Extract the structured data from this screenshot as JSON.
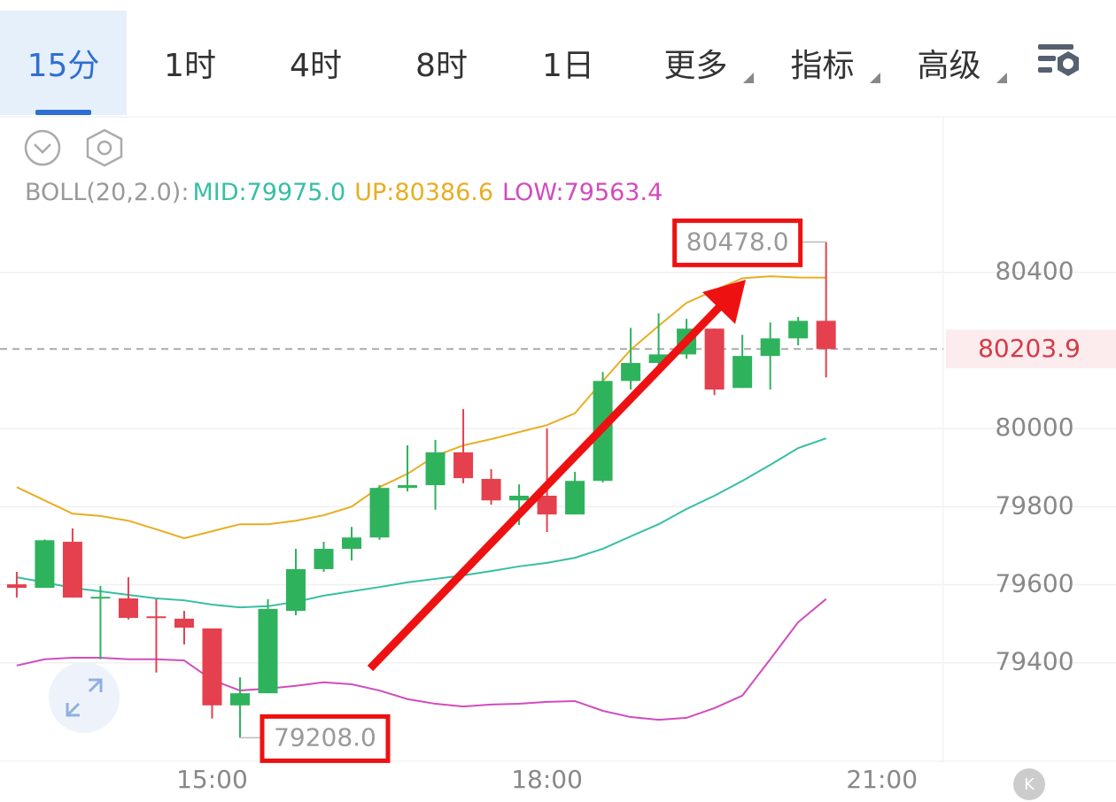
{
  "tabs": [
    "15分",
    "1时",
    "4时",
    "8时",
    "1日",
    "更多",
    "指标",
    "高级"
  ],
  "chart_data": {
    "type": "candlestick",
    "indicator_label": "BOLL(20,2.0):",
    "x": [
      13.25,
      13.5,
      13.75,
      14,
      14.25,
      14.5,
      14.75,
      15,
      15.25,
      15.5,
      15.75,
      16,
      16.25,
      16.5,
      16.75,
      17,
      17.25,
      17.5,
      17.75,
      18,
      18.25,
      18.5,
      18.75,
      19,
      19.25,
      19.5,
      19.75,
      20,
      20.25,
      20.5
    ],
    "open": [
      79601,
      79592,
      79710,
      79565,
      79565,
      79519,
      79513,
      79488,
      79291,
      79322,
      79533,
      79640,
      79692,
      79721,
      79848,
      79855,
      79939,
      79871,
      79816,
      79828,
      79780,
      79866,
      80122,
      80168,
      80190,
      80256,
      80104,
      80186,
      80231,
      80276
    ],
    "high": [
      79633,
      79716,
      79744,
      79597,
      79619,
      79563,
      79533,
      79488,
      79363,
      79563,
      79692,
      79710,
      79748,
      79855,
      79957,
      79971,
      80050,
      79896,
      79857,
      80000,
      79889,
      80145,
      80258,
      80295,
      80281,
      80256,
      80240,
      80272,
      80286,
      80478
    ],
    "low": [
      79567,
      79592,
      79567,
      79409,
      79511,
      79375,
      79447,
      79257,
      79208,
      79322,
      79522,
      79633,
      79662,
      79715,
      79839,
      79792,
      79860,
      79805,
      79753,
      79735,
      79780,
      79862,
      80100,
      80145,
      80179,
      80086,
      80104,
      80100,
      80213,
      80131
    ],
    "close": [
      79592,
      79714,
      79567,
      79569,
      79515,
      79515,
      79490,
      79291,
      79322,
      79538,
      79640,
      79692,
      79721,
      79848,
      79855,
      79939,
      79873,
      79816,
      79828,
      79780,
      79866,
      80122,
      80168,
      80190,
      80256,
      80100,
      80186,
      80231,
      80276,
      80203.9
    ],
    "up_color": "#2eb35c",
    "down_color": "#e4404e",
    "bands": [
      {
        "label": "MID:79975.0",
        "color": "#36bfa3",
        "values": [
          79619,
          79606,
          79592,
          79583,
          79574,
          79565,
          79560,
          79549,
          79542,
          79545,
          79556,
          79572,
          79583,
          79594,
          79606,
          79615,
          79624,
          79635,
          79647,
          79656,
          79669,
          79692,
          79724,
          79755,
          79794,
          79828,
          79866,
          79907,
          79950,
          79975
        ]
      },
      {
        "label": "UP:80386.6",
        "color": "#e8ae22",
        "values": [
          79850,
          79816,
          79782,
          79776,
          79764,
          79742,
          79719,
          79737,
          79755,
          79755,
          79764,
          79778,
          79800,
          79850,
          79884,
          79930,
          79957,
          79973,
          79991,
          80009,
          80039,
          80122,
          80202,
          80263,
          80322,
          80354,
          80385,
          80390,
          80387,
          80386.6
        ]
      },
      {
        "label": "LOW:79563.4",
        "color": "#d14cbd",
        "values": [
          79393,
          79409,
          79413,
          79413,
          79409,
          79409,
          79406,
          79356,
          79329,
          79334,
          79341,
          79350,
          79345,
          79329,
          79307,
          79295,
          79288,
          79293,
          79295,
          79300,
          79302,
          79277,
          79261,
          79254,
          79259,
          79284,
          79316,
          79409,
          79504,
          79563.4
        ]
      }
    ],
    "current_price": 80203.9,
    "annotations": [
      {
        "value": 80478,
        "label": "80478.0"
      },
      {
        "value": 79208,
        "label": "79208.0"
      }
    ],
    "annotation_color": "#ee1111",
    "ylim": [
      79150,
      80540
    ],
    "yticks": [
      79400,
      79600,
      79800,
      80000,
      80400
    ],
    "xlim": [
      13.1,
      21.55
    ],
    "xticks": [
      {
        "value": 15,
        "label": "15:00"
      },
      {
        "value": 18,
        "label": "18:00"
      },
      {
        "value": 21,
        "label": "21:00"
      }
    ],
    "grid": true
  }
}
